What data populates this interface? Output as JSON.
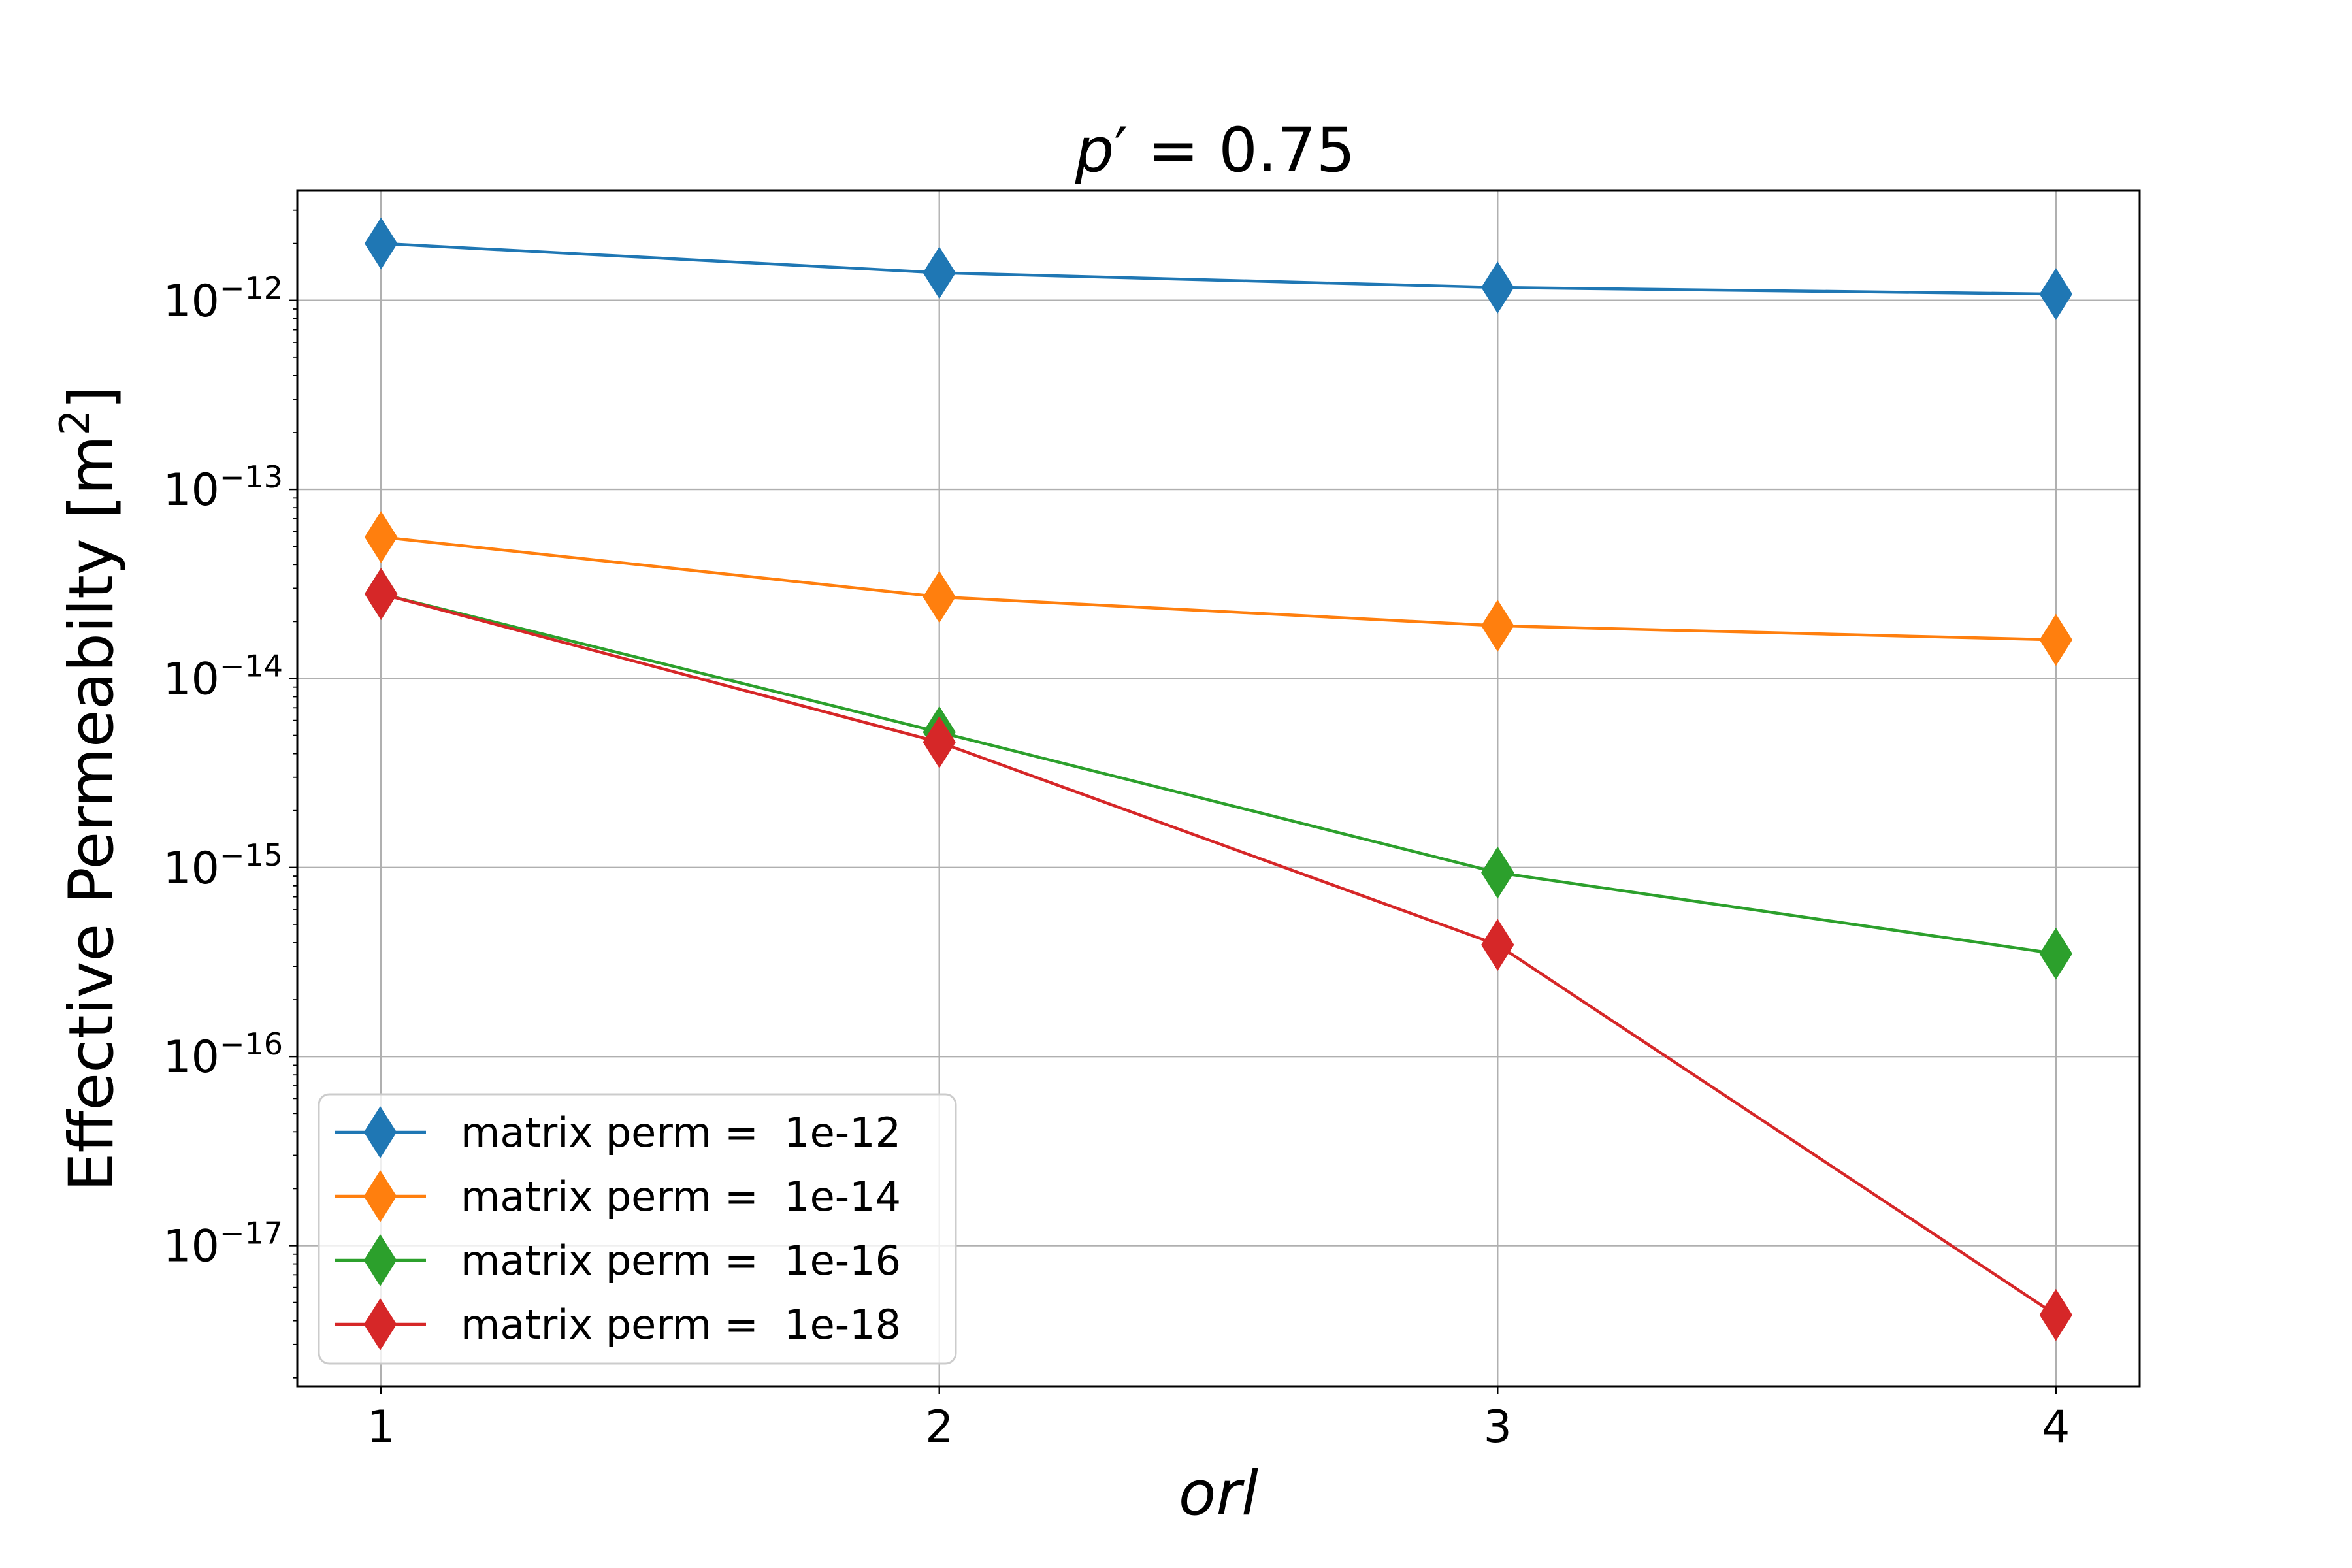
{
  "chart_data": {
    "type": "line",
    "title_main": "p",
    "title_prime": "′",
    "title_rest": " = 0.75",
    "xlabel": "orl",
    "ylabel": "Effective Permeabilty [m",
    "ylabel_sup": "2",
    "ylabel_end": "]",
    "yscale": "log",
    "grid": true,
    "legend_position": "lower left",
    "x": [
      1,
      2,
      3,
      4
    ],
    "xlim": [
      0.85,
      4.15
    ],
    "ylim": [
      1.8e-18,
      3.8e-12
    ],
    "x_ticks": [
      {
        "value": 1,
        "label": "1"
      },
      {
        "value": 2,
        "label": "2"
      },
      {
        "value": 3,
        "label": "3"
      },
      {
        "value": 4,
        "label": "4"
      }
    ],
    "y_ticks": [
      {
        "exp": -12,
        "base": "10",
        "sup": "−12"
      },
      {
        "exp": -13,
        "base": "10",
        "sup": "−13"
      },
      {
        "exp": -14,
        "base": "10",
        "sup": "−14"
      },
      {
        "exp": -15,
        "base": "10",
        "sup": "−15"
      },
      {
        "exp": -16,
        "base": "10",
        "sup": "−16"
      },
      {
        "exp": -17,
        "base": "10",
        "sup": "−17"
      }
    ],
    "series": [
      {
        "name": "matrix perm =  1e-12",
        "color": "#1f77b4",
        "values": [
          2e-12,
          1.4e-12,
          1.17e-12,
          1.08e-12
        ]
      },
      {
        "name": "matrix perm =  1e-14",
        "color": "#ff7f0e",
        "values": [
          5.6e-14,
          2.7e-14,
          1.9e-14,
          1.6e-14
        ]
      },
      {
        "name": "matrix perm =  1e-16",
        "color": "#2ca02c",
        "values": [
          2.8e-14,
          5.2e-15,
          9.4e-16,
          3.5e-16
        ]
      },
      {
        "name": "matrix perm =  1e-18",
        "color": "#d62728",
        "values": [
          2.8e-14,
          4.6e-15,
          3.9e-16,
          4.3e-18
        ]
      }
    ],
    "marker": "diamond"
  }
}
